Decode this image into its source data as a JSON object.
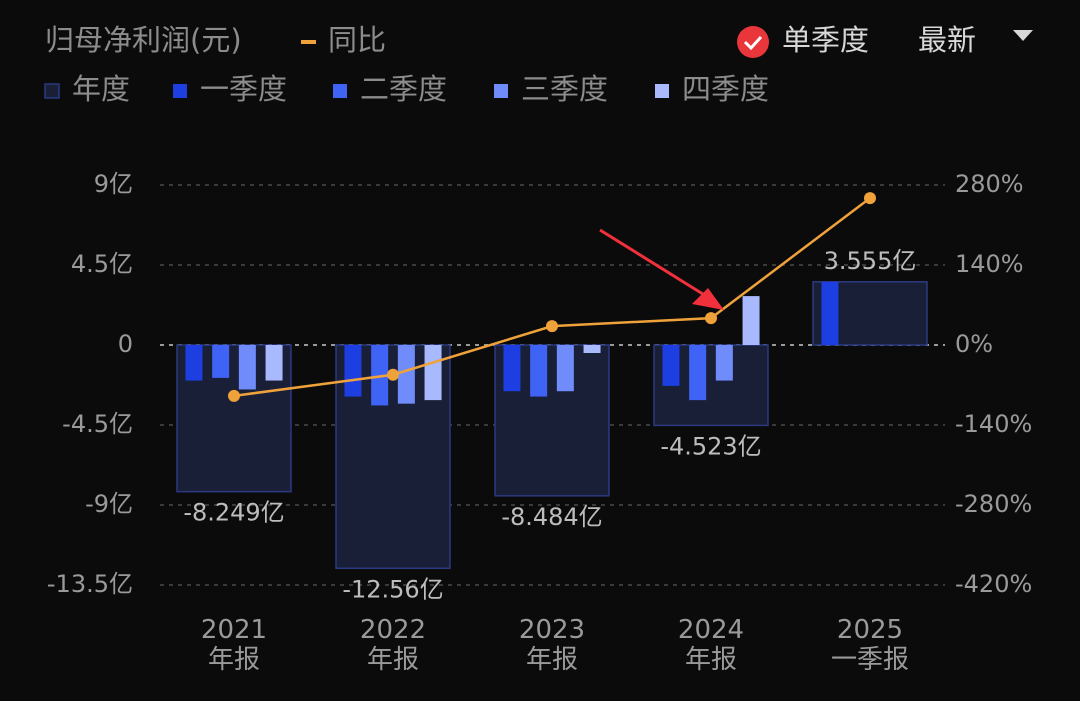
{
  "chart_data": {
    "type": "bar",
    "title": "归母净利润(元)",
    "toggle": "单季度",
    "dropdown": "最新",
    "categories": [
      "2021\n年报",
      "2022\n年报",
      "2023\n年报",
      "2024\n年报",
      "2025\n一季报"
    ],
    "series": [
      {
        "name": "年度",
        "kind": "box",
        "color": "#1a1f38",
        "stroke": "#2b3a80",
        "values": [
          -8.249,
          -12.56,
          -8.484,
          -4.523,
          3.555
        ],
        "value_labels": [
          "-8.249亿",
          "-12.56亿",
          "-8.484亿",
          "-4.523亿",
          "3.555亿"
        ]
      },
      {
        "name": "一季度",
        "kind": "bar",
        "color": "#1d3ee0",
        "values": [
          -2.0,
          -2.9,
          -2.6,
          -2.3,
          3.555
        ]
      },
      {
        "name": "二季度",
        "kind": "bar",
        "color": "#3e63f5",
        "values": [
          -1.85,
          -3.4,
          -2.9,
          -3.1,
          null
        ]
      },
      {
        "name": "三季度",
        "kind": "bar",
        "color": "#6f8cfa",
        "values": [
          -2.5,
          -3.3,
          -2.6,
          -2.0,
          null
        ]
      },
      {
        "name": "四季度",
        "kind": "bar",
        "color": "#a9b9fd",
        "values": [
          -2.0,
          -3.1,
          -0.45,
          2.75,
          null
        ]
      },
      {
        "name": "同比",
        "kind": "line",
        "axis": "y2",
        "color": "#f0a23a",
        "values": [
          -89,
          -52,
          33,
          47,
          257
        ]
      }
    ],
    "ylim": [
      -13.5,
      9
    ],
    "yticks": [
      {
        "value": 9,
        "label": "9亿"
      },
      {
        "value": 4.5,
        "label": "4.5亿"
      },
      0,
      {
        "value": -4.5,
        "label": "-4.5亿"
      },
      {
        "value": -9,
        "label": "-9亿"
      },
      {
        "value": -13.5,
        "label": "-13.5亿"
      }
    ],
    "y2lim": [
      -420,
      280
    ],
    "y2ticks": [
      {
        "value": 280,
        "label": "280%"
      },
      {
        "value": 140,
        "label": "140%"
      },
      {
        "value": 0,
        "label": "0%"
      },
      {
        "value": -140,
        "label": "-140%"
      },
      {
        "value": -280,
        "label": "-280%"
      },
      {
        "value": -420,
        "label": "-420%"
      }
    ],
    "grid": true
  }
}
